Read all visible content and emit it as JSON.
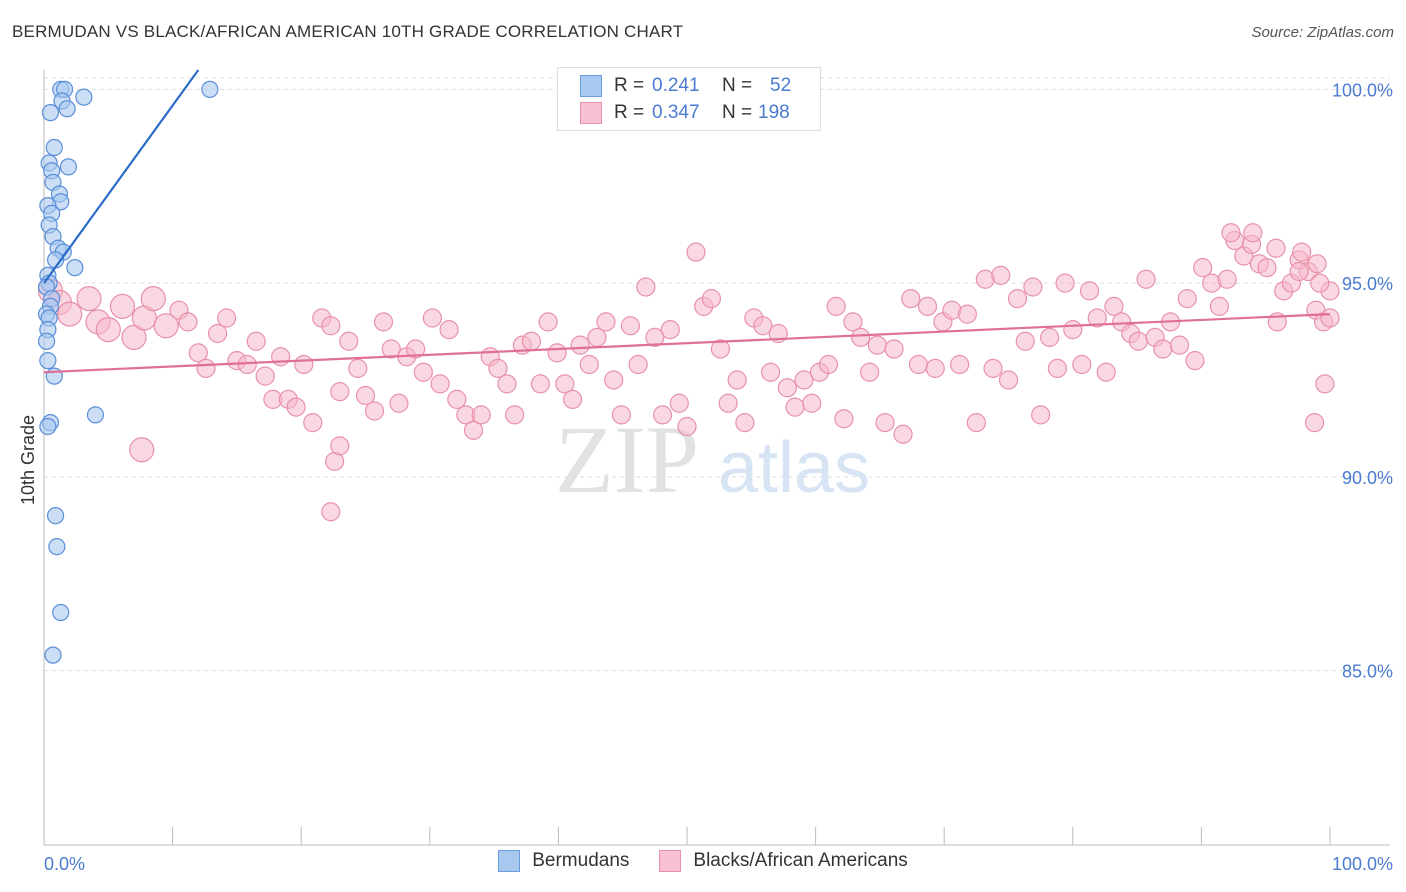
{
  "title": "BERMUDAN VS BLACK/AFRICAN AMERICAN 10TH GRADE CORRELATION CHART",
  "source": "Source: ZipAtlas.com",
  "watermark": {
    "zip": "ZIP",
    "atlas": "atlas"
  },
  "legend_top": {
    "rows": [
      {
        "r_label": "R =",
        "r_value": "0.241",
        "n_label": "N =",
        "n_value": "52",
        "color": "#a8c8f0",
        "border": "#6a9ae0"
      },
      {
        "r_label": "R =",
        "r_value": "0.347",
        "n_label": "N =",
        "n_value": "198",
        "color": "#f8c0d0",
        "border": "#e890aa"
      }
    ]
  },
  "legend_bottom": [
    {
      "label": "Bermudans",
      "color": "#a8c8f0",
      "border": "#6a9ae0"
    },
    {
      "label": "Blacks/African Americans",
      "color": "#f8c0d0",
      "border": "#e890aa"
    }
  ],
  "colors": {
    "blue_fill": "#a8c8f0",
    "blue_stroke": "#5b8fd8",
    "blue_line": "#2a6cc8",
    "pink_fill": "#f6b8cb",
    "pink_stroke": "#e890aa",
    "pink_line": "#e0709a",
    "axis_text": "#4a7bd0",
    "grid": "#dddddd"
  },
  "chart_data": {
    "type": "scatter",
    "title": "BERMUDAN VS BLACK/AFRICAN AMERICAN 10TH GRADE CORRELATION CHART",
    "xlabel": "",
    "ylabel": "10th Grade",
    "xlim": [
      0,
      100
    ],
    "ylim": [
      80.5,
      100.5
    ],
    "x_tick_labels": [
      "0.0%",
      "100.0%"
    ],
    "y_ticks": [
      85,
      90,
      95,
      100
    ],
    "y_tick_labels": [
      "85.0%",
      "90.0%",
      "95.0%",
      "100.0%"
    ],
    "grid": true,
    "series": [
      {
        "name": "Bermudans",
        "trend": {
          "x": [
            0,
            12
          ],
          "y": [
            95.0,
            100.5
          ]
        },
        "points": [
          [
            1.3,
            100
          ],
          [
            1.6,
            100
          ],
          [
            3.1,
            99.8
          ],
          [
            0.5,
            99.4
          ],
          [
            1.4,
            99.7
          ],
          [
            1.8,
            99.5
          ],
          [
            0.8,
            98.5
          ],
          [
            0.4,
            98.1
          ],
          [
            1.9,
            98.0
          ],
          [
            0.6,
            97.9
          ],
          [
            0.7,
            97.6
          ],
          [
            1.2,
            97.3
          ],
          [
            1.3,
            97.1
          ],
          [
            0.3,
            97.0
          ],
          [
            0.6,
            96.8
          ],
          [
            0.4,
            96.5
          ],
          [
            0.7,
            96.2
          ],
          [
            1.1,
            95.9
          ],
          [
            1.5,
            95.8
          ],
          [
            0.9,
            95.6
          ],
          [
            2.4,
            95.4
          ],
          [
            0.3,
            95.2
          ],
          [
            0.4,
            95.0
          ],
          [
            0.2,
            94.9
          ],
          [
            0.6,
            94.6
          ],
          [
            0.5,
            94.4
          ],
          [
            0.2,
            94.2
          ],
          [
            0.4,
            94.1
          ],
          [
            0.3,
            93.8
          ],
          [
            0.2,
            93.5
          ],
          [
            0.3,
            93.0
          ],
          [
            0.8,
            92.6
          ],
          [
            4.0,
            91.6
          ],
          [
            0.5,
            91.4
          ],
          [
            0.3,
            91.3
          ],
          [
            0.9,
            89.0
          ],
          [
            1.0,
            88.2
          ],
          [
            1.3,
            86.5
          ],
          [
            0.7,
            85.4
          ],
          [
            12.9,
            100
          ]
        ]
      },
      {
        "name": "Blacks/African Americans",
        "trend": {
          "x": [
            0,
            100
          ],
          "y": [
            92.7,
            94.2
          ]
        },
        "points": [
          [
            0.5,
            94.8
          ],
          [
            1.2,
            94.5
          ],
          [
            2.0,
            94.2
          ],
          [
            3.5,
            94.6
          ],
          [
            4.2,
            94.0
          ],
          [
            5.0,
            93.8
          ],
          [
            6.1,
            94.4
          ],
          [
            7.0,
            93.6
          ],
          [
            7.8,
            94.1
          ],
          [
            8.5,
            94.6
          ],
          [
            9.5,
            93.9
          ],
          [
            10.5,
            94.3
          ],
          [
            11.2,
            94.0
          ],
          [
            12.0,
            93.2
          ],
          [
            12.6,
            92.8
          ],
          [
            13.5,
            93.7
          ],
          [
            14.2,
            94.1
          ],
          [
            15.0,
            93.0
          ],
          [
            15.8,
            92.9
          ],
          [
            16.5,
            93.5
          ],
          [
            17.2,
            92.6
          ],
          [
            17.8,
            92.0
          ],
          [
            18.4,
            93.1
          ],
          [
            19.0,
            92.0
          ],
          [
            19.6,
            91.8
          ],
          [
            20.2,
            92.9
          ],
          [
            20.9,
            91.4
          ],
          [
            21.6,
            94.1
          ],
          [
            22.3,
            93.9
          ],
          [
            23.0,
            92.2
          ],
          [
            23.7,
            93.5
          ],
          [
            24.4,
            92.8
          ],
          [
            25.0,
            92.1
          ],
          [
            25.7,
            91.7
          ],
          [
            26.4,
            94.0
          ],
          [
            27.0,
            93.3
          ],
          [
            27.6,
            91.9
          ],
          [
            28.2,
            93.1
          ],
          [
            28.9,
            93.3
          ],
          [
            29.5,
            92.7
          ],
          [
            30.2,
            94.1
          ],
          [
            30.8,
            92.4
          ],
          [
            31.5,
            93.8
          ],
          [
            32.1,
            92.0
          ],
          [
            32.8,
            91.6
          ],
          [
            33.4,
            91.2
          ],
          [
            34.0,
            91.6
          ],
          [
            34.7,
            93.1
          ],
          [
            35.3,
            92.8
          ],
          [
            36.0,
            92.4
          ],
          [
            36.6,
            91.6
          ],
          [
            37.2,
            93.4
          ],
          [
            37.9,
            93.5
          ],
          [
            38.6,
            92.4
          ],
          [
            39.2,
            94.0
          ],
          [
            39.9,
            93.2
          ],
          [
            40.5,
            92.4
          ],
          [
            41.1,
            92.0
          ],
          [
            41.7,
            93.4
          ],
          [
            42.4,
            92.9
          ],
          [
            43.0,
            93.6
          ],
          [
            43.7,
            94.0
          ],
          [
            44.3,
            92.5
          ],
          [
            44.9,
            91.6
          ],
          [
            45.6,
            93.9
          ],
          [
            46.2,
            92.9
          ],
          [
            46.8,
            94.9
          ],
          [
            47.5,
            93.6
          ],
          [
            48.1,
            91.6
          ],
          [
            48.7,
            93.8
          ],
          [
            49.4,
            91.9
          ],
          [
            50.0,
            91.3
          ],
          [
            50.7,
            95.8
          ],
          [
            51.3,
            94.4
          ],
          [
            51.9,
            94.6
          ],
          [
            52.6,
            93.3
          ],
          [
            53.2,
            91.9
          ],
          [
            53.9,
            92.5
          ],
          [
            54.5,
            91.4
          ],
          [
            55.2,
            94.1
          ],
          [
            55.9,
            93.9
          ],
          [
            56.5,
            92.7
          ],
          [
            57.1,
            93.7
          ],
          [
            57.8,
            92.3
          ],
          [
            58.4,
            91.8
          ],
          [
            59.1,
            92.5
          ],
          [
            59.7,
            91.9
          ],
          [
            60.3,
            92.7
          ],
          [
            61.0,
            92.9
          ],
          [
            61.6,
            94.4
          ],
          [
            62.2,
            91.5
          ],
          [
            62.9,
            94.0
          ],
          [
            63.5,
            93.6
          ],
          [
            64.2,
            92.7
          ],
          [
            64.8,
            93.4
          ],
          [
            65.4,
            91.4
          ],
          [
            66.1,
            93.3
          ],
          [
            66.8,
            91.1
          ],
          [
            67.4,
            94.6
          ],
          [
            68.0,
            92.9
          ],
          [
            68.7,
            94.4
          ],
          [
            69.3,
            92.8
          ],
          [
            69.9,
            94.0
          ],
          [
            70.6,
            94.3
          ],
          [
            71.2,
            92.9
          ],
          [
            71.8,
            94.2
          ],
          [
            72.5,
            91.4
          ],
          [
            73.2,
            95.1
          ],
          [
            73.8,
            92.8
          ],
          [
            74.4,
            95.2
          ],
          [
            75.0,
            92.5
          ],
          [
            75.7,
            94.6
          ],
          [
            76.3,
            93.5
          ],
          [
            76.9,
            94.9
          ],
          [
            77.5,
            91.6
          ],
          [
            78.2,
            93.6
          ],
          [
            78.8,
            92.8
          ],
          [
            79.4,
            95.0
          ],
          [
            80.0,
            93.8
          ],
          [
            80.7,
            92.9
          ],
          [
            81.3,
            94.8
          ],
          [
            81.9,
            94.1
          ],
          [
            82.6,
            92.7
          ],
          [
            83.2,
            94.4
          ],
          [
            83.8,
            94.0
          ],
          [
            84.5,
            93.7
          ],
          [
            85.1,
            93.5
          ],
          [
            85.7,
            95.1
          ],
          [
            86.4,
            93.6
          ],
          [
            87.0,
            93.3
          ],
          [
            87.6,
            94.0
          ],
          [
            88.3,
            93.4
          ],
          [
            88.9,
            94.6
          ],
          [
            89.5,
            93.0
          ],
          [
            90.1,
            95.4
          ],
          [
            90.8,
            95.0
          ],
          [
            91.4,
            94.4
          ],
          [
            92.0,
            95.1
          ],
          [
            92.6,
            96.1
          ],
          [
            93.3,
            95.7
          ],
          [
            93.9,
            96.0
          ],
          [
            94.5,
            95.5
          ],
          [
            95.1,
            95.4
          ],
          [
            95.8,
            95.9
          ],
          [
            96.4,
            94.8
          ],
          [
            97.0,
            95.0
          ],
          [
            97.6,
            95.6
          ],
          [
            98.3,
            95.3
          ],
          [
            98.9,
            94.3
          ],
          [
            99.5,
            94.0
          ],
          [
            94.0,
            96.3
          ],
          [
            92.3,
            96.3
          ],
          [
            95.9,
            94.0
          ],
          [
            97.8,
            95.8
          ],
          [
            99.0,
            95.5
          ],
          [
            100.0,
            94.1
          ],
          [
            98.8,
            91.4
          ],
          [
            99.6,
            92.4
          ],
          [
            100.0,
            94.8
          ],
          [
            97.6,
            95.3
          ],
          [
            99.2,
            95.0
          ],
          [
            7.6,
            90.7
          ],
          [
            22.6,
            90.4
          ],
          [
            23.0,
            90.8
          ],
          [
            22.3,
            89.1
          ]
        ]
      }
    ]
  }
}
